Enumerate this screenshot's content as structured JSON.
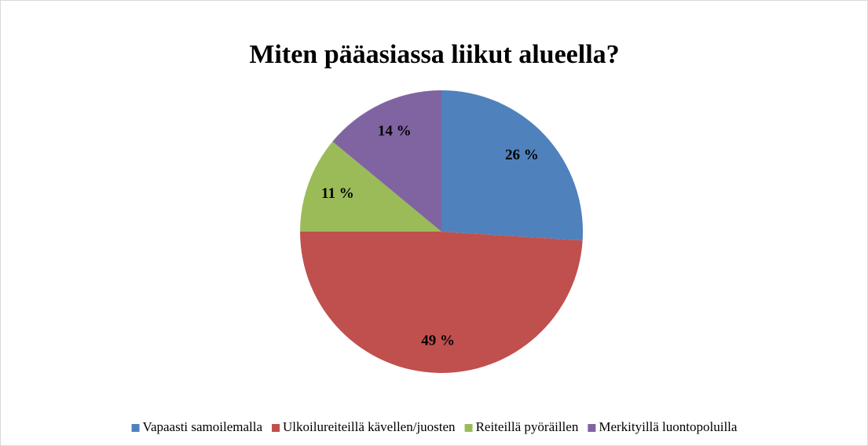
{
  "chart_data": {
    "type": "pie",
    "title": "Miten pääasiassa liikut alueella?",
    "categories": [
      "Vapaasti samoilemalla",
      "Ulkoilureiteillä kävellen/juosten",
      "Reiteillä pyöräillen",
      "Merkityillä luontopoluilla"
    ],
    "values": [
      26,
      49,
      11,
      14
    ],
    "value_labels": [
      "26 %",
      "49 %",
      "11 %",
      "14 %"
    ],
    "colors": [
      "#4f81bd",
      "#c0504d",
      "#9bbb59",
      "#8064a2"
    ],
    "legend": "bottom"
  }
}
